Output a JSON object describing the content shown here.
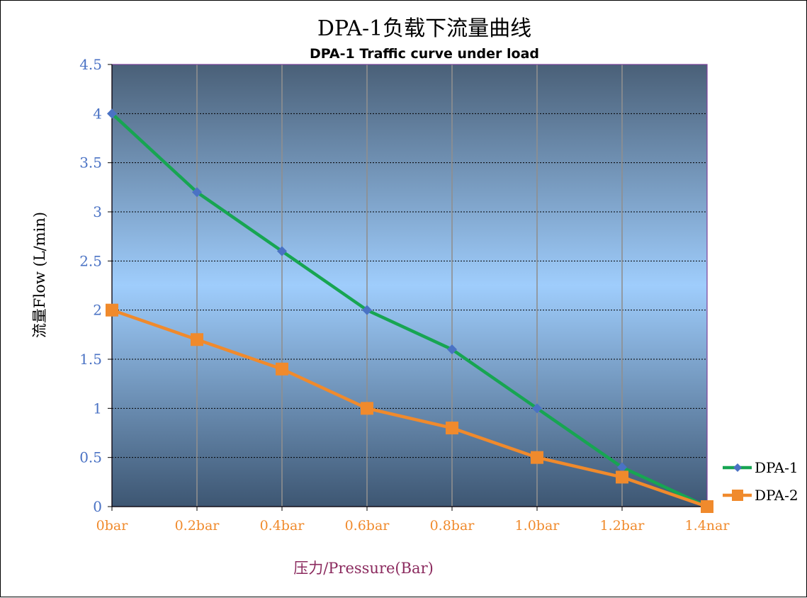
{
  "chart_data": {
    "type": "line",
    "title": "DPA-1负载下流量曲线",
    "subtitle": "DPA-1 Traffic curve under load",
    "xlabel": "压力/Pressure(Bar)",
    "ylabel": "流量Flow (L/min)",
    "categories": [
      "0bar",
      "0.2bar",
      "0.4bar",
      "0.6bar",
      "0.8bar",
      "1.0bar",
      "1.2bar",
      "1.4nar"
    ],
    "ylim": [
      0,
      4.5
    ],
    "yticks": [
      "0",
      "0.5",
      "1",
      "1.5",
      "2",
      "2.5",
      "3",
      "3.5",
      "4",
      "4.5"
    ],
    "grid": true,
    "legend_position": "right",
    "series": [
      {
        "name": "DPA-1",
        "values": [
          4.0,
          3.2,
          2.6,
          2.0,
          1.6,
          1.0,
          0.4,
          0.0
        ],
        "color": "#17a552",
        "marker": "diamond",
        "marker_color": "#4a72c4"
      },
      {
        "name": "DPA-2",
        "values": [
          2.0,
          1.7,
          1.4,
          1.0,
          0.8,
          0.5,
          0.3,
          0.0
        ],
        "color": "#f08a2c",
        "marker": "square",
        "marker_color": "#f08a2c"
      }
    ],
    "colors": {
      "plot_bg_top": "#4a6078",
      "plot_bg_mid": "#9fcdfc",
      "plot_bg_bottom": "#3d5672",
      "plot_border": "#7a3f9a",
      "gridline_h": "#000000",
      "gridline_v": "#8f8f8f"
    }
  }
}
